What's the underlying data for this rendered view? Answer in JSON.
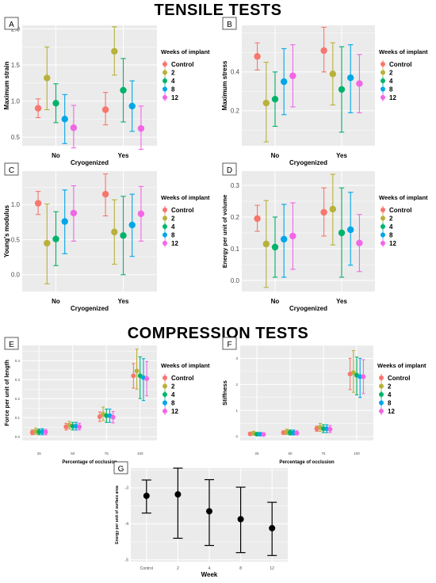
{
  "titles": {
    "tensile": "TENSILE TESTS",
    "compression": "COMPRESSION TESTS"
  },
  "legend": {
    "title": "Weeks of implant",
    "entries": [
      "Control",
      "2",
      "4",
      "8",
      "12"
    ],
    "colors": [
      "#f8766d",
      "#b8b13a",
      "#00b36b",
      "#00a6e6",
      "#f266e6"
    ]
  },
  "chart_data": [
    {
      "panel": "A",
      "type": "scatter",
      "xlabel": "Cryogenized",
      "ylabel": "Maximum strain",
      "categories": [
        "No",
        "Yes"
      ],
      "ylim": [
        0.38,
        2.05
      ],
      "yticks": [
        "0.5",
        "1.0",
        "1.5",
        "2.0"
      ],
      "ytick_values": [
        0.5,
        1.0,
        1.5,
        2.0
      ],
      "series": [
        {
          "name": "Control",
          "values": [
            0.9,
            0.88
          ],
          "lower": [
            0.77,
            0.67
          ],
          "upper": [
            1.03,
            1.12
          ]
        },
        {
          "name": "2",
          "values": [
            1.32,
            1.69
          ],
          "lower": [
            0.88,
            1.36
          ],
          "upper": [
            1.75,
            2.03
          ]
        },
        {
          "name": "4",
          "values": [
            0.97,
            1.15
          ],
          "lower": [
            0.7,
            0.71
          ],
          "upper": [
            1.24,
            1.59
          ]
        },
        {
          "name": "8",
          "values": [
            0.75,
            0.93
          ],
          "lower": [
            0.41,
            0.58
          ],
          "upper": [
            1.09,
            1.28
          ]
        },
        {
          "name": "12",
          "values": [
            0.63,
            0.62
          ],
          "lower": [
            0.35,
            0.33
          ],
          "upper": [
            0.94,
            0.93
          ]
        }
      ]
    },
    {
      "panel": "B",
      "type": "scatter",
      "xlabel": "Cryogenized",
      "ylabel": "Maximum stress",
      "categories": [
        "No",
        "Yes"
      ],
      "ylim": [
        0.02,
        0.64
      ],
      "yticks": [
        "0.2",
        "0.4"
      ],
      "ytick_values": [
        0.2,
        0.4
      ],
      "series": [
        {
          "name": "Control",
          "values": [
            0.48,
            0.51
          ],
          "lower": [
            0.41,
            0.4
          ],
          "upper": [
            0.55,
            0.63
          ]
        },
        {
          "name": "2",
          "values": [
            0.24,
            0.39
          ],
          "lower": [
            0.04,
            0.23
          ],
          "upper": [
            0.45,
            0.55
          ]
        },
        {
          "name": "4",
          "values": [
            0.26,
            0.31
          ],
          "lower": [
            0.12,
            0.09
          ],
          "upper": [
            0.4,
            0.53
          ]
        },
        {
          "name": "8",
          "values": [
            0.35,
            0.37
          ],
          "lower": [
            0.18,
            0.19
          ],
          "upper": [
            0.52,
            0.54
          ]
        },
        {
          "name": "12",
          "values": [
            0.38,
            0.34
          ],
          "lower": [
            0.22,
            0.19
          ],
          "upper": [
            0.54,
            0.49
          ]
        }
      ]
    },
    {
      "panel": "C",
      "type": "scatter",
      "xlabel": "Cryogenized",
      "ylabel": "Young's modulus",
      "categories": [
        "No",
        "Yes"
      ],
      "ylim": [
        -0.24,
        1.48
      ],
      "yticks": [
        "0.0",
        "0.5",
        "1.0"
      ],
      "ytick_values": [
        0.0,
        0.5,
        1.0
      ],
      "series": [
        {
          "name": "Control",
          "values": [
            1.02,
            1.15
          ],
          "lower": [
            0.86,
            0.84
          ],
          "upper": [
            1.19,
            1.44
          ]
        },
        {
          "name": "2",
          "values": [
            0.45,
            0.61
          ],
          "lower": [
            -0.13,
            0.15
          ],
          "upper": [
            1.01,
            1.07
          ]
        },
        {
          "name": "4",
          "values": [
            0.51,
            0.56
          ],
          "lower": [
            0.13,
            0.0
          ],
          "upper": [
            0.9,
            1.12
          ]
        },
        {
          "name": "8",
          "values": [
            0.76,
            0.71
          ],
          "lower": [
            0.3,
            0.26
          ],
          "upper": [
            1.21,
            1.15
          ]
        },
        {
          "name": "12",
          "values": [
            0.88,
            0.87
          ],
          "lower": [
            0.48,
            0.48
          ],
          "upper": [
            1.27,
            1.26
          ]
        }
      ]
    },
    {
      "panel": "D",
      "type": "scatter",
      "xlabel": "Cryogenized",
      "ylabel": "Energy per unit of volume",
      "categories": [
        "No",
        "Yes"
      ],
      "ylim": [
        -0.035,
        0.345
      ],
      "yticks": [
        "0.0",
        "0.1",
        "0.2",
        "0.3"
      ],
      "ytick_values": [
        0.0,
        0.1,
        0.2,
        0.3
      ],
      "series": [
        {
          "name": "Control",
          "values": [
            0.195,
            0.215
          ],
          "lower": [
            0.155,
            0.14
          ],
          "upper": [
            0.237,
            0.292
          ]
        },
        {
          "name": "2",
          "values": [
            0.115,
            0.225
          ],
          "lower": [
            -0.022,
            0.112
          ],
          "upper": [
            0.252,
            0.335
          ]
        },
        {
          "name": "4",
          "values": [
            0.105,
            0.15
          ],
          "lower": [
            0.01,
            0.01
          ],
          "upper": [
            0.2,
            0.292
          ]
        },
        {
          "name": "8",
          "values": [
            0.13,
            0.16
          ],
          "lower": [
            0.01,
            0.048
          ],
          "upper": [
            0.24,
            0.278
          ]
        },
        {
          "name": "12",
          "values": [
            0.14,
            0.118
          ],
          "lower": [
            0.035,
            0.028
          ],
          "upper": [
            0.245,
            0.208
          ]
        }
      ]
    },
    {
      "panel": "E",
      "type": "scatter",
      "xlabel": "Percentage of occlusion",
      "ylabel": "Force per unit of length",
      "categories": [
        "25",
        "50",
        "75",
        "100"
      ],
      "ylim": [
        -0.02,
        0.48
      ],
      "yticks": [
        "0.0",
        "0.1",
        "0.2",
        "0.3",
        "0.4"
      ],
      "ytick_values": [
        0.0,
        0.1,
        0.2,
        0.3,
        0.4
      ],
      "series": [
        {
          "name": "Control",
          "values": [
            0.022,
            0.052,
            0.105,
            0.32
          ],
          "lower": [
            0.01,
            0.035,
            0.08,
            0.255
          ],
          "upper": [
            0.035,
            0.07,
            0.13,
            0.385
          ]
        },
        {
          "name": "2",
          "values": [
            0.028,
            0.06,
            0.118,
            0.345
          ],
          "lower": [
            0.012,
            0.04,
            0.085,
            0.25
          ],
          "upper": [
            0.045,
            0.08,
            0.155,
            0.46
          ]
        },
        {
          "name": "4",
          "values": [
            0.025,
            0.055,
            0.11,
            0.32
          ],
          "lower": [
            0.01,
            0.035,
            0.075,
            0.2
          ],
          "upper": [
            0.04,
            0.075,
            0.145,
            0.42
          ]
        },
        {
          "name": "8",
          "values": [
            0.026,
            0.055,
            0.11,
            0.31
          ],
          "lower": [
            0.01,
            0.035,
            0.075,
            0.19
          ],
          "upper": [
            0.042,
            0.075,
            0.145,
            0.41
          ]
        },
        {
          "name": "12",
          "values": [
            0.024,
            0.052,
            0.102,
            0.305
          ],
          "lower": [
            0.01,
            0.035,
            0.072,
            0.215
          ],
          "upper": [
            0.038,
            0.07,
            0.132,
            0.395
          ]
        }
      ]
    },
    {
      "panel": "F",
      "type": "scatter",
      "xlabel": "Percentage of occlusion",
      "ylabel": "Stiffness",
      "categories": [
        "25",
        "50",
        "75",
        "100"
      ],
      "ylim": [
        -0.15,
        3.5
      ],
      "yticks": [
        "0",
        "1",
        "2",
        "3"
      ],
      "ytick_values": [
        0,
        1,
        2,
        3
      ],
      "series": [
        {
          "name": "Control",
          "values": [
            0.1,
            0.15,
            0.3,
            2.4
          ],
          "lower": [
            0.05,
            0.08,
            0.2,
            1.8
          ],
          "upper": [
            0.15,
            0.22,
            0.4,
            3.0
          ]
        },
        {
          "name": "2",
          "values": [
            0.12,
            0.18,
            0.35,
            2.45
          ],
          "lower": [
            0.05,
            0.08,
            0.2,
            1.7
          ],
          "upper": [
            0.2,
            0.28,
            0.5,
            3.3
          ]
        },
        {
          "name": "4",
          "values": [
            0.09,
            0.15,
            0.3,
            2.35
          ],
          "lower": [
            0.03,
            0.06,
            0.15,
            1.6
          ],
          "upper": [
            0.15,
            0.25,
            0.45,
            3.05
          ]
        },
        {
          "name": "8",
          "values": [
            0.09,
            0.14,
            0.3,
            2.3
          ],
          "lower": [
            0.03,
            0.06,
            0.15,
            1.5
          ],
          "upper": [
            0.15,
            0.25,
            0.45,
            3.0
          ]
        },
        {
          "name": "12",
          "values": [
            0.08,
            0.13,
            0.28,
            2.3
          ],
          "lower": [
            0.03,
            0.06,
            0.15,
            1.65
          ],
          "upper": [
            0.15,
            0.22,
            0.42,
            2.95
          ]
        }
      ]
    },
    {
      "panel": "G",
      "type": "scatter",
      "xlabel": "Week",
      "ylabel": "Energy per unit of surface area",
      "categories": [
        "Control",
        "2",
        "4",
        "8",
        "12"
      ],
      "ylim": [
        -5.05,
        -2.45
      ],
      "yticks": [
        "-5",
        "-4",
        "-3"
      ],
      "ytick_values": [
        -5,
        -4,
        -3
      ],
      "series": [
        {
          "name": "",
          "values": [
            -3.22,
            -3.18,
            -3.65,
            -3.87,
            -4.12
          ],
          "lower": [
            -3.7,
            -4.4,
            -4.6,
            -4.8,
            -4.88
          ],
          "upper": [
            -2.78,
            -2.45,
            -2.77,
            -2.98,
            -3.4
          ]
        }
      ]
    }
  ]
}
